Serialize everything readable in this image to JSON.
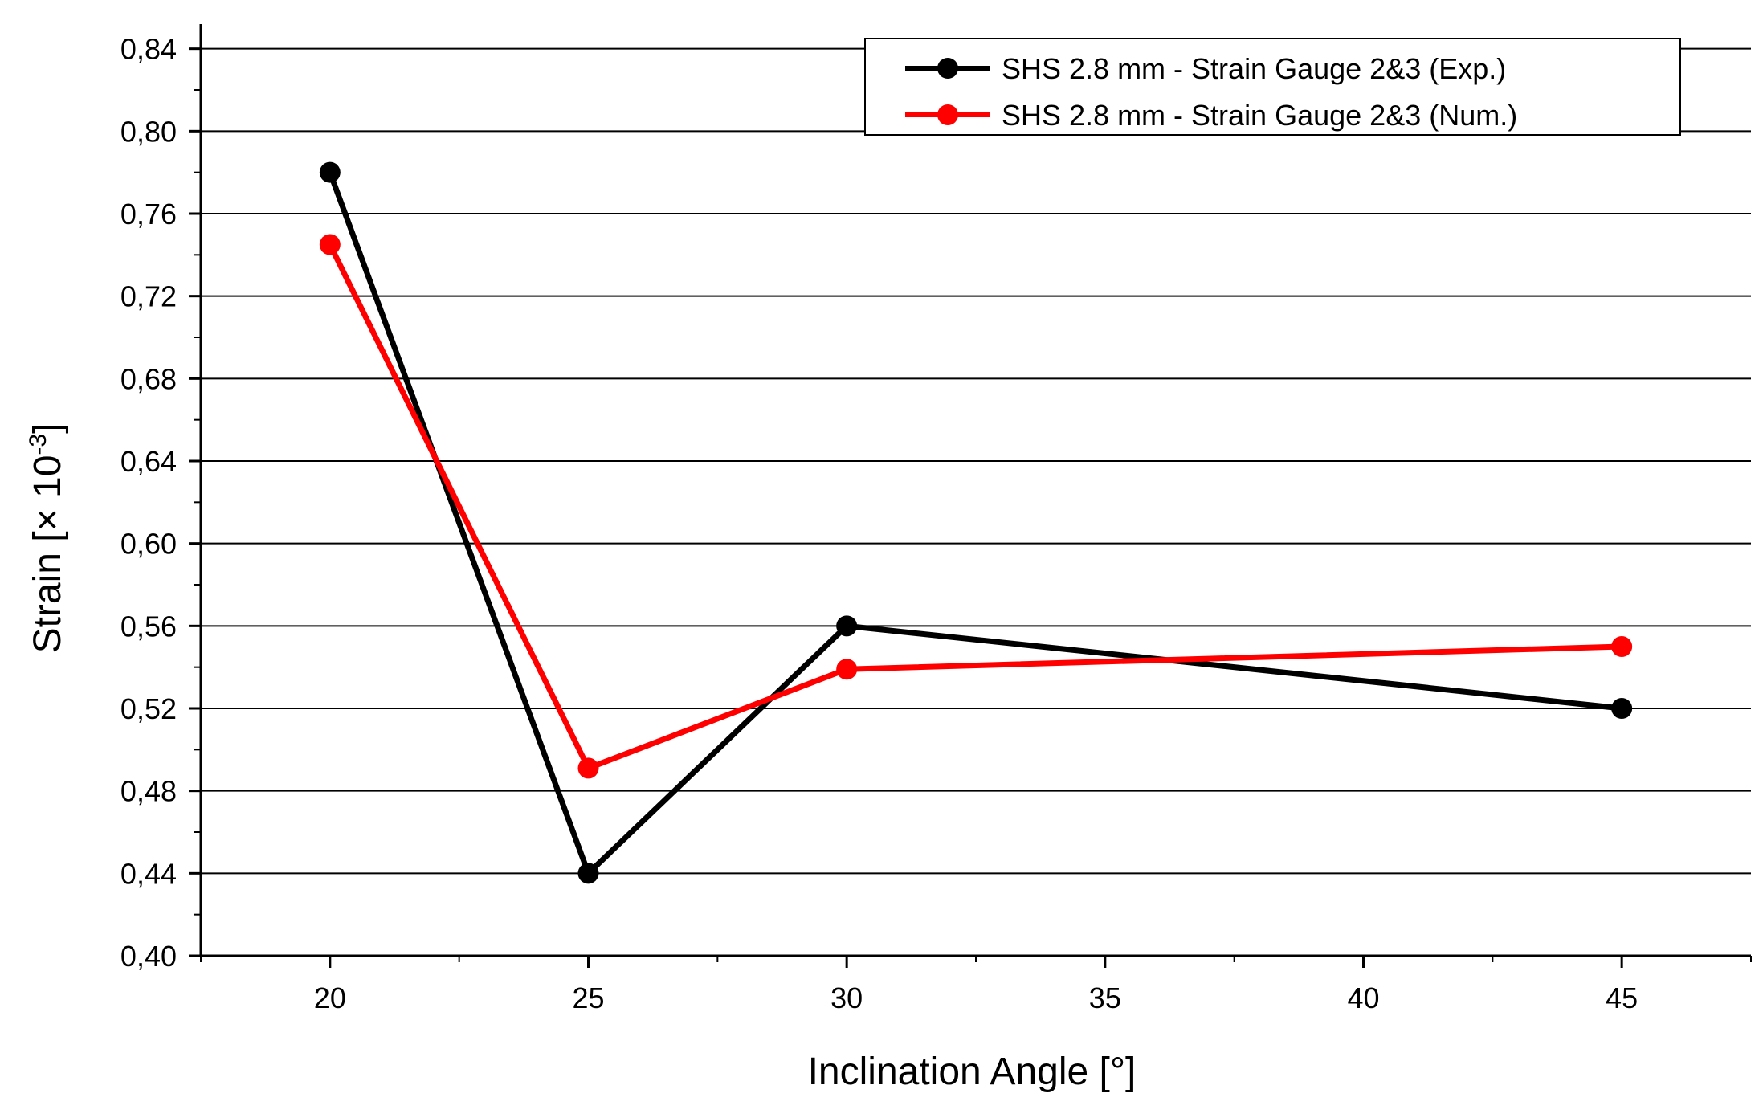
{
  "chart_data": {
    "type": "line",
    "title": "",
    "xlabel": "Inclination Angle [°]",
    "ylabel": "Strain [× 10",
    "ylabel_exponent": "-3",
    "ylabel_close": "]",
    "xlim": [
      17.5,
      47.5
    ],
    "ylim": [
      0.4,
      0.85
    ],
    "x_ticks": [
      20,
      25,
      30,
      35,
      40,
      45
    ],
    "x_tick_labels": [
      "20",
      "25",
      "30",
      "35",
      "40",
      "45"
    ],
    "y_ticks": [
      0.4,
      0.44,
      0.48,
      0.52,
      0.56,
      0.6,
      0.64,
      0.68,
      0.72,
      0.76,
      0.8,
      0.84
    ],
    "y_tick_labels": [
      "0,40",
      "0,44",
      "0,48",
      "0,52",
      "0,56",
      "0,60",
      "0,64",
      "0,68",
      "0,72",
      "0,76",
      "0,80",
      "0,84"
    ],
    "grid": "horizontal",
    "legend_position": "top-right",
    "series": [
      {
        "name": "SHS 2.8 mm - Strain Gauge 2&3 (Exp.)",
        "color": "#000000",
        "x": [
          20,
          25,
          30,
          45
        ],
        "y": [
          0.78,
          0.44,
          0.56,
          0.52
        ]
      },
      {
        "name": "SHS 2.8 mm - Strain Gauge 2&3 (Num.)",
        "color": "#ff0000",
        "x": [
          20,
          25,
          30,
          45
        ],
        "y": [
          0.745,
          0.491,
          0.539,
          0.55
        ]
      }
    ]
  }
}
